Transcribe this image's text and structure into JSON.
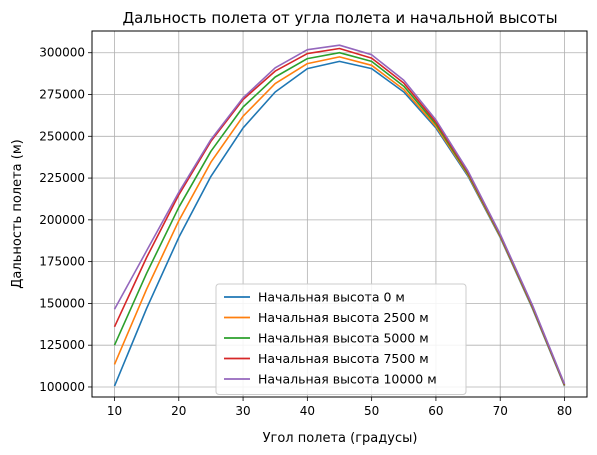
{
  "chart_data": {
    "type": "line",
    "title": "Дальность полета от угла полета и начальной высоты",
    "xlabel": "Угол полета (градусы)",
    "ylabel": "Дальность полета (м)",
    "xlim": [
      6.5,
      83.5
    ],
    "ylim": [
      94000,
      313000
    ],
    "xticks": [
      10,
      20,
      30,
      40,
      50,
      60,
      70,
      80
    ],
    "yticks": [
      100000,
      125000,
      150000,
      175000,
      200000,
      225000,
      250000,
      275000,
      300000
    ],
    "grid": true,
    "legend_position": "lower-center",
    "x": [
      10,
      15,
      20,
      25,
      30,
      35,
      40,
      45,
      50,
      55,
      60,
      65,
      70,
      75,
      80
    ],
    "series": [
      {
        "name": "Начальная высота 0 м",
        "color": "#1f77b4",
        "values": [
          100500,
          147000,
          189500,
          226000,
          255000,
          276500,
          290500,
          294800,
          290500,
          276500,
          255000,
          226000,
          189500,
          147000,
          100500
        ]
      },
      {
        "name": "Начальная высота 2500 м",
        "color": "#ff7f0e",
        "values": [
          113500,
          158500,
          199500,
          234500,
          262000,
          281500,
          293500,
          297500,
          292500,
          278000,
          256000,
          226800,
          190000,
          147500,
          100900
        ]
      },
      {
        "name": "Начальная высота 5000 м",
        "color": "#2ca02c",
        "values": [
          125000,
          168000,
          207500,
          241000,
          267500,
          285500,
          296500,
          300000,
          294800,
          280000,
          257300,
          227500,
          190500,
          148000,
          101200
        ]
      },
      {
        "name": "Начальная высота 7500 м",
        "color": "#d62728",
        "values": [
          136000,
          177500,
          215000,
          247000,
          272000,
          289000,
          299500,
          302500,
          296800,
          281800,
          258500,
          228300,
          191000,
          148500,
          101500
        ]
      },
      {
        "name": "Начальная высота 10000 м",
        "color": "#9467bd",
        "values": [
          146500,
          181500,
          216500,
          248000,
          273000,
          291000,
          301800,
          304500,
          298800,
          283500,
          259800,
          229100,
          191500,
          149000,
          101800
        ]
      }
    ]
  }
}
